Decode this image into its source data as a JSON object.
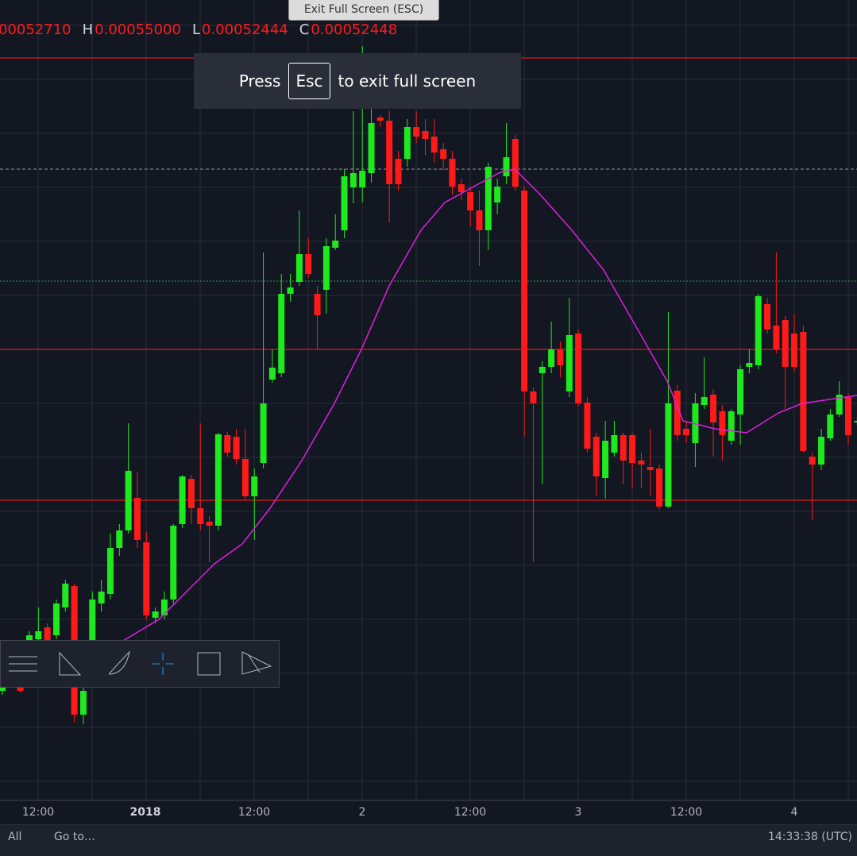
{
  "header": {
    "exit_button": "Exit Full Screen (ESC)",
    "ohlc": [
      {
        "label": "",
        "value": "00052710"
      },
      {
        "label": "H",
        "value": "0.00055000"
      },
      {
        "label": "L",
        "value": "0.00052444"
      },
      {
        "label": "C",
        "value": "0.00052448"
      }
    ]
  },
  "fullscreen_notice": {
    "before": "Press",
    "key": "Esc",
    "after": "to exit full screen"
  },
  "time_axis": [
    "12:00",
    "2018",
    "12:00",
    "2",
    "12:00",
    "3",
    "12:00",
    "4"
  ],
  "footer": {
    "range": "All",
    "goto": "Go to…",
    "clock": "14:33:38 (UTC)"
  }
}
